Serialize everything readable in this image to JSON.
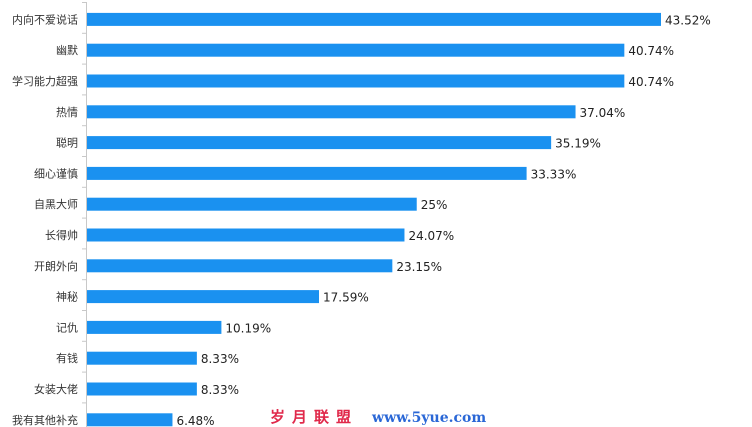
{
  "chart_data": {
    "type": "bar",
    "orientation": "horizontal",
    "categories": [
      "内向不爱说话",
      "幽默",
      "学习能力超强",
      "热情",
      "聪明",
      "细心谨慎",
      "自黑大师",
      "长得帅",
      "开朗外向",
      "神秘",
      "记仇",
      "有钱",
      "女装大佬",
      "我有其他补充"
    ],
    "values": [
      43.52,
      40.74,
      40.74,
      37.04,
      35.19,
      33.33,
      25,
      24.07,
      23.15,
      17.59,
      10.19,
      8.33,
      8.33,
      6.48
    ],
    "value_labels": [
      "43.52%",
      "40.74%",
      "40.74%",
      "37.04%",
      "35.19%",
      "33.33%",
      "25%",
      "24.07%",
      "23.15%",
      "17.59%",
      "10.19%",
      "8.33%",
      "8.33%",
      "6.48%"
    ],
    "xlim": [
      0,
      50
    ],
    "grid": false,
    "legend": "none",
    "bar_color": "#1a91f0"
  },
  "watermark": {
    "cn": "岁月联盟",
    "en": "www.5yue.com"
  }
}
